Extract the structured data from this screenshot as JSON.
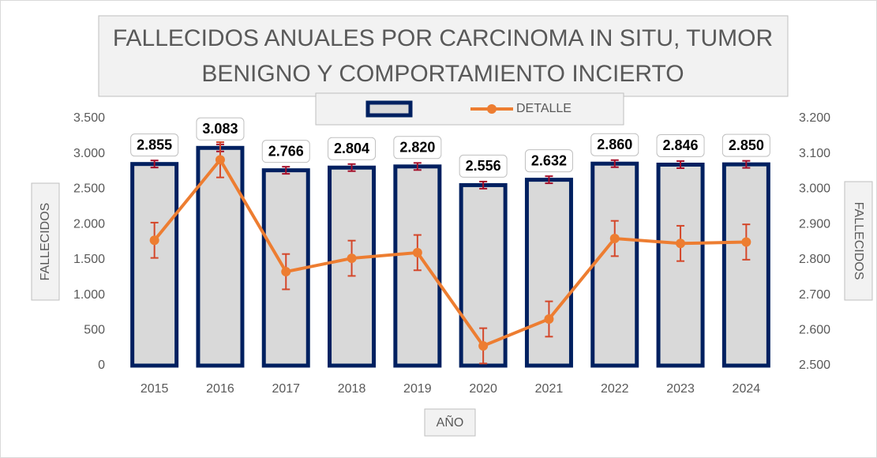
{
  "chart_data": {
    "type": "bar-line",
    "title": [
      "FALLECIDOS ANUALES POR CARCINOMA IN SITU, TUMOR",
      "BENIGNO Y COMPORTAMIENTO INCIERTO"
    ],
    "x_label": "AÑO",
    "y_label": "FALLECIDOS",
    "y2_label": "FALLECIDOS",
    "categories": [
      "2015",
      "2016",
      "2017",
      "2018",
      "2019",
      "2020",
      "2021",
      "2022",
      "2023",
      "2024"
    ],
    "series": [
      {
        "type": "bar",
        "color": "#d9d9d9",
        "edge_color": "#002060",
        "error": 50,
        "error_color": "#a50f2a",
        "values": [
          2855,
          3083,
          2766,
          2804,
          2820,
          2556,
          2632,
          2860,
          2846,
          2850
        ],
        "value_labels": [
          "2.855",
          "3.083",
          "2.766",
          "2.804",
          "2.820",
          "2.556",
          "2.632",
          "2.860",
          "2.846",
          "2.850"
        ]
      },
      {
        "type": "line",
        "name": "DETALLE",
        "axis": "y2",
        "color": "#ed7d31",
        "error": 50,
        "error_color": "#d4472a",
        "values": [
          2855,
          3083,
          2766,
          2804,
          2820,
          2556,
          2632,
          2860,
          2846,
          2850
        ]
      }
    ],
    "ylim": [
      0,
      3500
    ],
    "yticks": [
      0,
      500,
      {
        "value": 1000,
        "label": "1.000"
      },
      {
        "value": 1500,
        "label": "1.500"
      },
      {
        "value": 2000,
        "label": "2.000"
      },
      {
        "value": 2500,
        "label": "2.500"
      },
      {
        "value": 3000,
        "label": "3.000"
      },
      {
        "value": 3500,
        "label": "3.500"
      }
    ],
    "y2lim": [
      2500,
      3200
    ],
    "y2ticks": [
      {
        "value": 2500,
        "label": "2.500"
      },
      {
        "value": 2600,
        "label": "2.600"
      },
      {
        "value": 2700,
        "label": "2.700"
      },
      {
        "value": 2800,
        "label": "2.800"
      },
      {
        "value": 2900,
        "label": "2.900"
      },
      {
        "value": 3000,
        "label": "3.000"
      },
      {
        "value": 3100,
        "label": "3.100"
      },
      {
        "value": 3200,
        "label": "3.200"
      }
    ],
    "legend": "top",
    "grid": false
  }
}
